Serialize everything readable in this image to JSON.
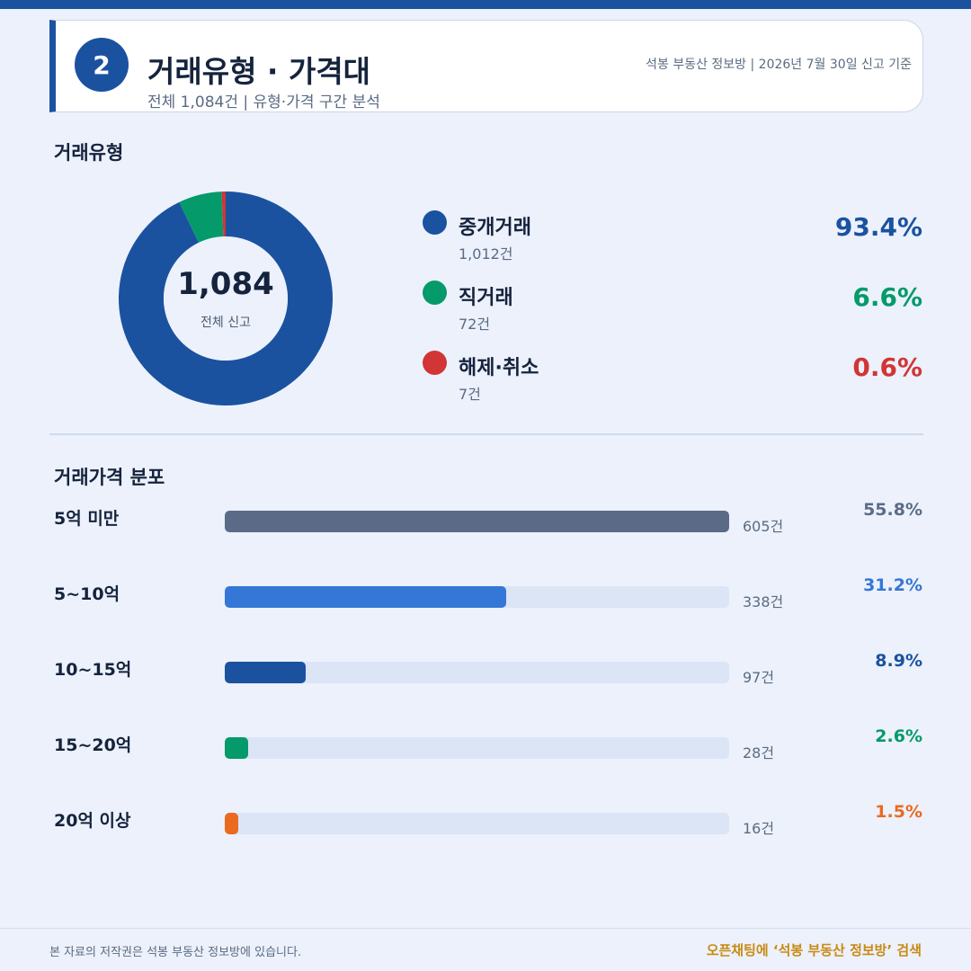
{
  "header": {
    "number": "2",
    "title": "거래유형 · 가격대",
    "subtitle": "전체 1,084건 | 유형·가격 구간 분석",
    "meta": "석봉 부동산 정보방 | 2026년 7월 30일 신고 기준"
  },
  "colors": {
    "primary": "#1a52a0",
    "green": "#049a6a",
    "red": "#d23535",
    "slate": "#5b6b87",
    "mid_blue": "#3577d6",
    "orange": "#ea6a1f",
    "footer_accent": "#c98a12"
  },
  "sections": {
    "type_title": "거래유형",
    "price_title": "거래가격 분포"
  },
  "footer": {
    "left": "본 자료의 저작권은 석봉 부동산 정보방에 있습니다.",
    "right": "오픈채팅에 ‘석봉 부동산 정보방’ 검색"
  },
  "chart_data": [
    {
      "type": "pie",
      "title": "거래유형",
      "center_value": "1,084",
      "center_label": "전체 신고",
      "categories": [
        "중개거래",
        "직거래",
        "해제·취소"
      ],
      "counts": [
        1012,
        72,
        7
      ],
      "count_labels": [
        "1,012건",
        "72건",
        "7건"
      ],
      "percent_labels": [
        "93.4%",
        "6.6%",
        "0.6%"
      ],
      "values": [
        93.4,
        6.6,
        0.6
      ],
      "colors": [
        "#1a52a0",
        "#049a6a",
        "#d23535"
      ],
      "legend": "right"
    },
    {
      "type": "bar",
      "title": "거래가격 분포",
      "orientation": "horizontal",
      "categories": [
        "5억 미만",
        "5~10억",
        "10~15억",
        "15~20억",
        "20억 이상"
      ],
      "values": [
        605,
        338,
        97,
        28,
        16
      ],
      "count_labels": [
        "605건",
        "338건",
        "97건",
        "28건",
        "16건"
      ],
      "percent_labels": [
        "55.8%",
        "31.2%",
        "8.9%",
        "2.6%",
        "1.5%"
      ],
      "colors": [
        "#5b6b87",
        "#3577d6",
        "#1a52a0",
        "#049a6a",
        "#ea6a1f"
      ],
      "xlim": [
        0,
        605
      ]
    }
  ]
}
